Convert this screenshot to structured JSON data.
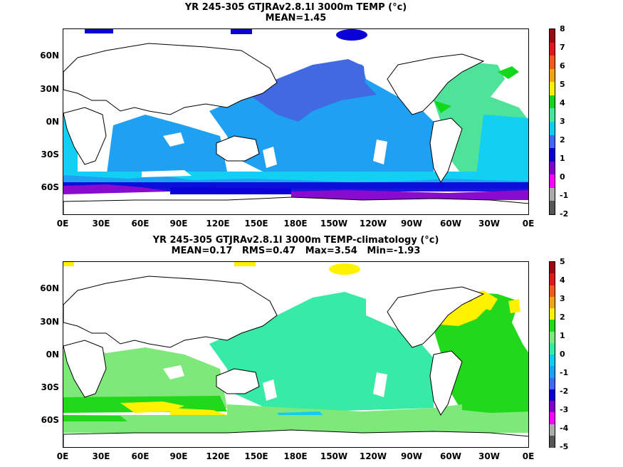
{
  "panels": [
    {
      "id": "top",
      "title_line1": "YR 245-305 GTJRAv2.8.1l 3000m TEMP (°c)",
      "title_line2": "MEAN=1.45",
      "lat_labels": [
        "60N",
        "30N",
        "0N",
        "30S",
        "60S"
      ],
      "lon_labels": [
        "0E",
        "30E",
        "60E",
        "90E",
        "120E",
        "150E",
        "180E",
        "150W",
        "120W",
        "90W",
        "60W",
        "30W",
        "0E"
      ],
      "colorbar_labels": [
        "8",
        "7",
        "6",
        "5",
        "4",
        "3",
        "2",
        "1",
        "0",
        "-1",
        "-2"
      ],
      "colorbar_colors": [
        "#9a0a12",
        "#dd1a1a",
        "#ef5a1e",
        "#f3a21e",
        "#fff200",
        "#15d21a",
        "#4fe39a",
        "#11ccf0",
        "#3e6af0",
        "#0b00cf",
        "#8000c8",
        "#ff00ff",
        "#aaaaaa",
        "#555555"
      ],
      "ocean_colors": {
        "north_pacific": "#4169e1",
        "tropics": "#1ea1f2",
        "south": "#12d0f2",
        "antarctic": "#0a00d8",
        "deep_south": "#8a0bd0",
        "atlantic_north": "#4fe39a",
        "atlantic_patch": "#11d819"
      }
    },
    {
      "id": "bottom",
      "title_line1": "YR 245-305 GTJRAv2.8.1l 3000m TEMP-climatology (°c)",
      "title_line2": "MEAN=0.17   RMS=0.47   Max=3.54   Min=-1.93",
      "lat_labels": [
        "60N",
        "30N",
        "0N",
        "30S",
        "60S"
      ],
      "lon_labels": [
        "0E",
        "30E",
        "60E",
        "90E",
        "120E",
        "150E",
        "180E",
        "150W",
        "120W",
        "90W",
        "60W",
        "30W",
        "0E"
      ],
      "colorbar_labels": [
        "5",
        "4",
        "3",
        "2",
        "1",
        "0",
        "-1",
        "-2",
        "-3",
        "-4",
        "-5"
      ],
      "colorbar_colors": [
        "#9a0a12",
        "#dd1a1a",
        "#ef5a1e",
        "#f3a21e",
        "#fff200",
        "#22d81a",
        "#7ee87a",
        "#37eaa5",
        "#11ccf0",
        "#1ea1f2",
        "#3e6af0",
        "#0b00cf",
        "#8000c8",
        "#ff00ff",
        "#aaaaaa",
        "#555555"
      ],
      "ocean_colors": {
        "pacific": "#37eaa5",
        "indian": "#7ee87a",
        "southern_band": "#22d81a",
        "warm_patch": "#fff200",
        "atlantic": "#22d81a",
        "cold_patch": "#11ccf0"
      }
    }
  ]
}
